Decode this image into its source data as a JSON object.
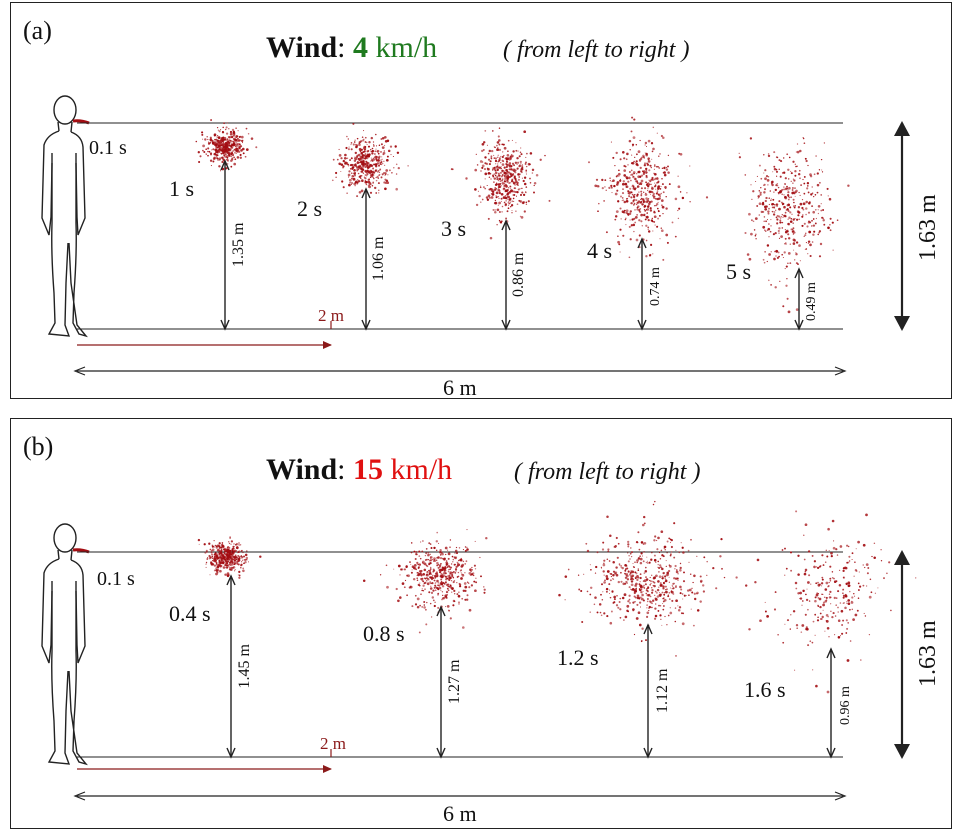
{
  "colors": {
    "droplet": "#a30d12",
    "accent_green": "#1f7a1f",
    "accent_red": "#e01010",
    "ruler": "#8b1a1a",
    "line": "#222222"
  },
  "panels": [
    {
      "id": "a",
      "label": "(a)",
      "wind_prefix": "Wind",
      "wind_sep": ": ",
      "wind_value": "4",
      "wind_unit": " km/h",
      "wind_color": "#1f7a1f",
      "direction": "( from left to right )",
      "mouth_time": "0.1 s",
      "ruler_label": "2 m",
      "distance_label": "6 m",
      "height_label": "1.63 m",
      "clouds": [
        {
          "time": "1 s",
          "height": "1.35 m"
        },
        {
          "time": "2 s",
          "height": "1.06 m"
        },
        {
          "time": "3 s",
          "height": "0.86 m"
        },
        {
          "time": "4 s",
          "height": "0.74 m"
        },
        {
          "time": "5 s",
          "height": "0.49 m"
        }
      ]
    },
    {
      "id": "b",
      "label": "(b)",
      "wind_prefix": "Wind",
      "wind_sep": ": ",
      "wind_value": "15",
      "wind_unit": " km/h",
      "wind_color": "#e01010",
      "direction": "( from left to right )",
      "mouth_time": "0.1 s",
      "ruler_label": "2 m",
      "distance_label": "6 m",
      "height_label": "1.63 m",
      "clouds": [
        {
          "time": "0.4 s",
          "height": "1.45 m"
        },
        {
          "time": "0.8 s",
          "height": "1.27 m"
        },
        {
          "time": "1.2 s",
          "height": "1.12 m"
        },
        {
          "time": "1.6 s",
          "height": "0.96 m"
        }
      ]
    }
  ]
}
